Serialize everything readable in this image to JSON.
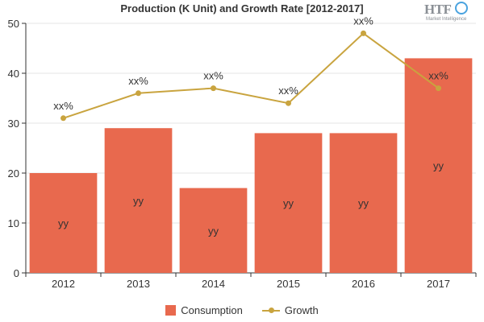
{
  "chart_data": {
    "type": "bar",
    "title": "Production (K Unit) and Growth Rate [2012-2017]",
    "categories": [
      "2012",
      "2013",
      "2014",
      "2015",
      "2016",
      "2017"
    ],
    "series": [
      {
        "name": "Consumption",
        "kind": "bar",
        "values": [
          20,
          29,
          17,
          28,
          28,
          43
        ],
        "labels": [
          "yy",
          "yy",
          "yy",
          "yy",
          "yy",
          "yy"
        ],
        "color": "#e8694e"
      },
      {
        "name": "Growth",
        "kind": "line",
        "values": [
          31,
          36,
          37,
          34,
          48,
          37
        ],
        "labels": [
          "xx%",
          "xx%",
          "xx%",
          "xx%",
          "xx%",
          "xx%"
        ],
        "color": "#c9a43f"
      }
    ],
    "xlabel": "",
    "ylabel": "",
    "ylim": [
      0,
      50
    ],
    "yticks": [
      "0",
      "10",
      "20",
      "30",
      "40",
      "50"
    ],
    "grid": true,
    "legend_position": "bottom"
  },
  "logo": {
    "main": "HTF",
    "sub": "Market Intelligence"
  }
}
